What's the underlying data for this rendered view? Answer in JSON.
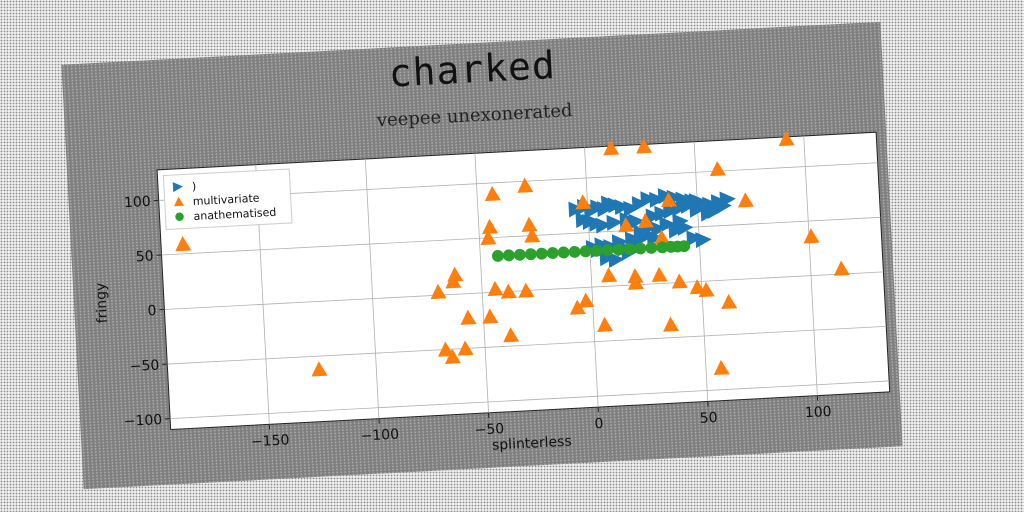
{
  "chart_data": {
    "type": "scatter",
    "title": "charked",
    "subtitle": "veepee unexonerated",
    "xlabel": "splinterless",
    "ylabel": "fringy",
    "xlim": [
      -195,
      133
    ],
    "ylim": [
      -110,
      128
    ],
    "xticks": [
      -150,
      -100,
      -50,
      0,
      50,
      100
    ],
    "yticks": [
      -100,
      -50,
      0,
      50,
      100
    ],
    "grid": true,
    "legend_position": "upper-left",
    "series": [
      {
        "name": ")",
        "marker": "triangle-right",
        "color": "#1f77b4",
        "x": [
          -5,
          -1,
          2,
          5,
          8,
          10,
          13,
          16,
          20,
          24,
          28,
          32,
          36,
          40,
          44,
          48,
          52,
          56,
          60,
          64,
          -2,
          1,
          4,
          7,
          12,
          18,
          22,
          30,
          34,
          38,
          42,
          46,
          50,
          55,
          58,
          62,
          48,
          52,
          2,
          4,
          6,
          10,
          14,
          20,
          26,
          30,
          40,
          44,
          36,
          42,
          32,
          28,
          24,
          22,
          18,
          16,
          8,
          12,
          50
        ],
        "y": [
          72,
          74,
          70,
          73,
          71,
          76,
          74,
          72,
          70,
          74,
          78,
          77,
          80,
          78,
          76,
          74,
          72,
          70,
          72,
          74,
          62,
          60,
          58,
          56,
          58,
          60,
          58,
          62,
          64,
          66,
          68,
          70,
          66,
          62,
          64,
          68,
          40,
          38,
          36,
          34,
          38,
          36,
          40,
          42,
          44,
          42,
          48,
          50,
          54,
          56,
          50,
          52,
          48,
          40,
          30,
          34,
          26,
          24,
          74
        ]
      },
      {
        "name": "multivariate",
        "marker": "triangle-up",
        "color": "#ff7f0e",
        "x": [
          12,
          27,
          92,
          -185,
          60,
          -43,
          -28,
          72,
          37,
          -2,
          26,
          -27,
          -45,
          -26,
          -46,
          33,
          17,
          101,
          -62,
          -63,
          -70,
          -44,
          -30,
          -38,
          -57,
          -7,
          8,
          20,
          20,
          31,
          40,
          48,
          52,
          114,
          62,
          -47,
          -3,
          -38,
          -59,
          5,
          35,
          -68,
          -65,
          -126,
          57
        ],
        "y": [
          140,
          142,
          128,
          59,
          102,
          90,
          96,
          72,
          76,
          78,
          58,
          60,
          60,
          50,
          50,
          42,
          55,
          36,
          18,
          12,
          3,
          3,
          0,
          0,
          -22,
          -18,
          10,
          8,
          2,
          8,
          1,
          -5,
          -8,
          5,
          -20,
          -22,
          -12,
          -40,
          -50,
          -35,
          -38,
          -50,
          -57,
          -62,
          -80
        ]
      },
      {
        "name": "anathematised",
        "marker": "circle",
        "color": "#2ca02c",
        "x": [
          -42,
          -37,
          -32,
          -27,
          -22,
          -17,
          -12,
          -7,
          -2,
          3,
          8,
          13,
          18,
          23,
          28,
          33,
          37,
          40,
          43
        ],
        "y": [
          33,
          33,
          33,
          33,
          33,
          33,
          33,
          33,
          33,
          33,
          33,
          33,
          33,
          33,
          33,
          33,
          33,
          33,
          33
        ]
      }
    ]
  }
}
